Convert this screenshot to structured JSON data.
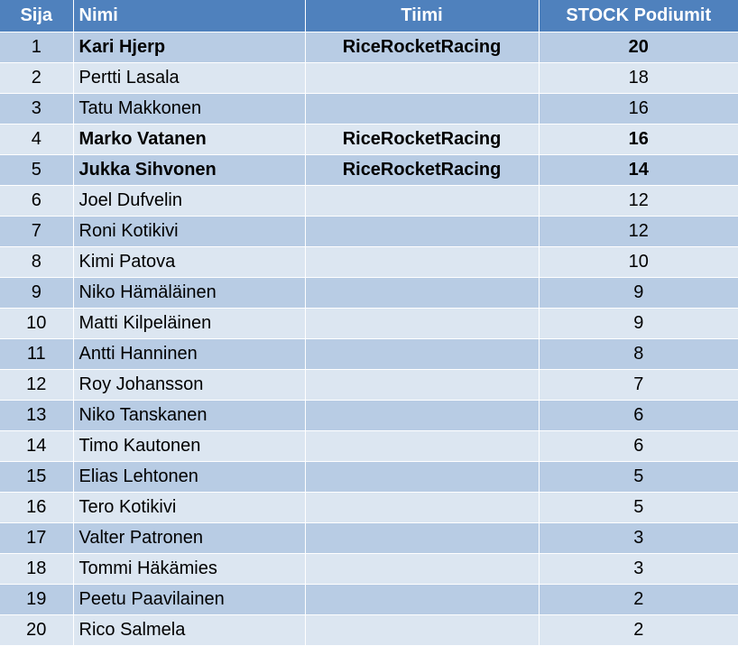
{
  "table": {
    "headers": {
      "rank": "Sija",
      "name": "Nimi",
      "team": "Tiimi",
      "podiums": "STOCK Podiumit"
    },
    "rows": [
      {
        "rank": "1",
        "name": "Kari Hjerp",
        "team": "RiceRocketRacing",
        "podiums": "20",
        "bold": true
      },
      {
        "rank": "2",
        "name": "Pertti Lasala",
        "team": "",
        "podiums": "18",
        "bold": false
      },
      {
        "rank": "3",
        "name": "Tatu Makkonen",
        "team": "",
        "podiums": "16",
        "bold": false
      },
      {
        "rank": "4",
        "name": "Marko Vatanen",
        "team": "RiceRocketRacing",
        "podiums": "16",
        "bold": true
      },
      {
        "rank": "5",
        "name": "Jukka Sihvonen",
        "team": "RiceRocketRacing",
        "podiums": "14",
        "bold": true
      },
      {
        "rank": "6",
        "name": "Joel Dufvelin",
        "team": "",
        "podiums": "12",
        "bold": false
      },
      {
        "rank": "7",
        "name": "Roni Kotikivi",
        "team": "",
        "podiums": "12",
        "bold": false
      },
      {
        "rank": "8",
        "name": "Kimi Patova",
        "team": "",
        "podiums": "10",
        "bold": false
      },
      {
        "rank": "9",
        "name": "Niko Hämäläinen",
        "team": "",
        "podiums": "9",
        "bold": false
      },
      {
        "rank": "10",
        "name": "Matti Kilpeläinen",
        "team": "",
        "podiums": "9",
        "bold": false
      },
      {
        "rank": "11",
        "name": "Antti Hanninen",
        "team": "",
        "podiums": "8",
        "bold": false
      },
      {
        "rank": "12",
        "name": "Roy Johansson",
        "team": "",
        "podiums": "7",
        "bold": false
      },
      {
        "rank": "13",
        "name": "Niko Tanskanen",
        "team": "",
        "podiums": "6",
        "bold": false
      },
      {
        "rank": "14",
        "name": "Timo Kautonen",
        "team": "",
        "podiums": "6",
        "bold": false
      },
      {
        "rank": "15",
        "name": "Elias Lehtonen",
        "team": "",
        "podiums": "5",
        "bold": false
      },
      {
        "rank": "16",
        "name": "Tero Kotikivi",
        "team": "",
        "podiums": "5",
        "bold": false
      },
      {
        "rank": "17",
        "name": "Valter Patronen",
        "team": "",
        "podiums": "3",
        "bold": false
      },
      {
        "rank": "18",
        "name": "Tommi Häkämies",
        "team": "",
        "podiums": "3",
        "bold": false
      },
      {
        "rank": "19",
        "name": "Peetu Paavilainen",
        "team": "",
        "podiums": "2",
        "bold": false
      },
      {
        "rank": "20",
        "name": "Rico Salmela",
        "team": "",
        "podiums": "2",
        "bold": false
      }
    ]
  },
  "colors": {
    "header_bg": "#4f81bd",
    "row_odd_bg": "#b8cce4",
    "row_even_bg": "#dce6f1"
  }
}
